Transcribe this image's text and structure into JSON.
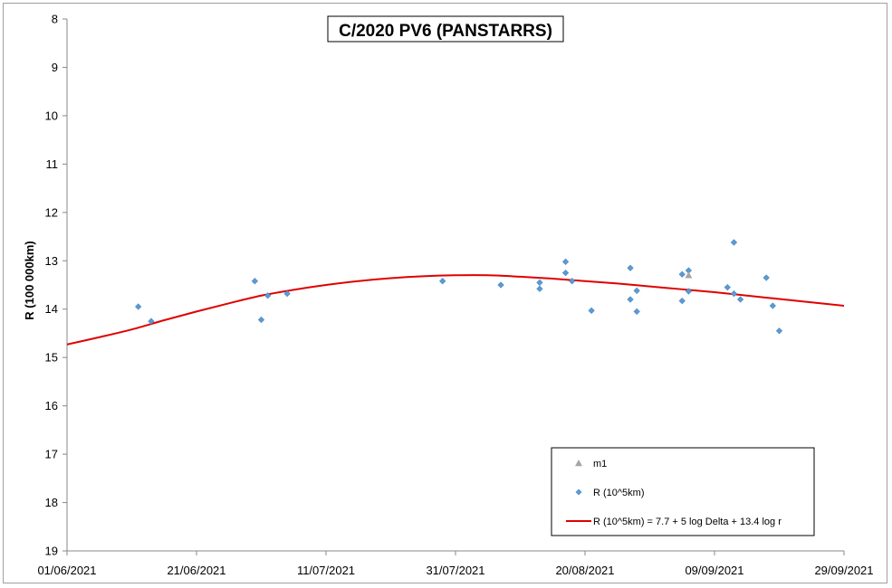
{
  "chart_data": {
    "type": "scatter",
    "title": "C/2020 PV6 (PANSTARRS)",
    "xlabel": "",
    "ylabel": "R (100 000km)",
    "x_axis": {
      "type": "date",
      "min": "2021-06-01",
      "max": "2021-09-29",
      "tick_step_days": 20,
      "tick_labels": [
        "01/06/2021",
        "21/06/2021",
        "11/07/2021",
        "31/07/2021",
        "20/08/2021",
        "09/09/2021",
        "29/09/2021"
      ]
    },
    "y_axis": {
      "min": 8,
      "max": 19,
      "inverted": true,
      "tick_step": 1,
      "tick_labels": [
        "8",
        "9",
        "10",
        "11",
        "12",
        "13",
        "14",
        "15",
        "16",
        "17",
        "18",
        "19"
      ]
    },
    "grid": false,
    "legend_position": "bottom-right",
    "colors": {
      "points": "#5b9bd5",
      "point_stroke": "#4a86c0",
      "m1": "#a5a5a5",
      "model_line": "#e00000"
    },
    "series": [
      {
        "name": "m1",
        "kind": "marker-triangle",
        "points": [
          {
            "x": "2021-09-05",
            "y": 13.3
          }
        ]
      },
      {
        "name": "R (10^5km)",
        "kind": "marker-diamond",
        "points": [
          {
            "x": "2021-06-12",
            "y": 13.95
          },
          {
            "x": "2021-06-14",
            "y": 14.25
          },
          {
            "x": "2021-06-30",
            "y": 13.42
          },
          {
            "x": "2021-07-01",
            "y": 14.22
          },
          {
            "x": "2021-07-02",
            "y": 13.72
          },
          {
            "x": "2021-07-05",
            "y": 13.68
          },
          {
            "x": "2021-07-29",
            "y": 13.42
          },
          {
            "x": "2021-08-07",
            "y": 13.5
          },
          {
            "x": "2021-08-13",
            "y": 13.45
          },
          {
            "x": "2021-08-13",
            "y": 13.58
          },
          {
            "x": "2021-08-17",
            "y": 13.02
          },
          {
            "x": "2021-08-17",
            "y": 13.25
          },
          {
            "x": "2021-08-18",
            "y": 13.42
          },
          {
            "x": "2021-08-21",
            "y": 14.03
          },
          {
            "x": "2021-08-27",
            "y": 13.15
          },
          {
            "x": "2021-08-27",
            "y": 13.8
          },
          {
            "x": "2021-08-28",
            "y": 13.62
          },
          {
            "x": "2021-08-28",
            "y": 14.05
          },
          {
            "x": "2021-09-04",
            "y": 13.28
          },
          {
            "x": "2021-09-04",
            "y": 13.83
          },
          {
            "x": "2021-09-05",
            "y": 13.2
          },
          {
            "x": "2021-09-05",
            "y": 13.63
          },
          {
            "x": "2021-09-11",
            "y": 13.55
          },
          {
            "x": "2021-09-12",
            "y": 12.62
          },
          {
            "x": "2021-09-12",
            "y": 13.68
          },
          {
            "x": "2021-09-13",
            "y": 13.8
          },
          {
            "x": "2021-09-17",
            "y": 13.35
          },
          {
            "x": "2021-09-18",
            "y": 13.93
          },
          {
            "x": "2021-09-19",
            "y": 14.45
          }
        ]
      },
      {
        "name": "R (10^5km) = 7.7 + 5 log Delta + 13.4 log r",
        "kind": "line",
        "points": [
          {
            "x": "2021-06-01",
            "y": 14.73
          },
          {
            "x": "2021-06-06",
            "y": 14.58
          },
          {
            "x": "2021-06-11",
            "y": 14.42
          },
          {
            "x": "2021-06-16",
            "y": 14.23
          },
          {
            "x": "2021-06-21",
            "y": 14.05
          },
          {
            "x": "2021-06-26",
            "y": 13.88
          },
          {
            "x": "2021-07-01",
            "y": 13.72
          },
          {
            "x": "2021-07-06",
            "y": 13.6
          },
          {
            "x": "2021-07-11",
            "y": 13.5
          },
          {
            "x": "2021-07-16",
            "y": 13.42
          },
          {
            "x": "2021-07-21",
            "y": 13.36
          },
          {
            "x": "2021-07-26",
            "y": 13.32
          },
          {
            "x": "2021-07-31",
            "y": 13.3
          },
          {
            "x": "2021-08-05",
            "y": 13.3
          },
          {
            "x": "2021-08-10",
            "y": 13.33
          },
          {
            "x": "2021-08-15",
            "y": 13.37
          },
          {
            "x": "2021-08-20",
            "y": 13.42
          },
          {
            "x": "2021-08-25",
            "y": 13.47
          },
          {
            "x": "2021-08-30",
            "y": 13.53
          },
          {
            "x": "2021-09-04",
            "y": 13.59
          },
          {
            "x": "2021-09-09",
            "y": 13.65
          },
          {
            "x": "2021-09-14",
            "y": 13.72
          },
          {
            "x": "2021-09-19",
            "y": 13.79
          },
          {
            "x": "2021-09-24",
            "y": 13.86
          },
          {
            "x": "2021-09-29",
            "y": 13.93
          }
        ]
      }
    ]
  }
}
